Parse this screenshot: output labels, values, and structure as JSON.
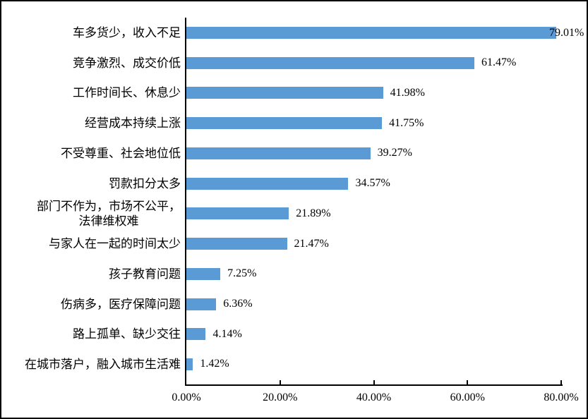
{
  "chart_data": {
    "type": "bar",
    "orientation": "horizontal",
    "title": "",
    "categories": [
      "车多货少，收入不足",
      "竞争激烈、成交价低",
      "工作时间长、休息少",
      "经营成本持续上涨",
      "不受尊重、社会地位低",
      "罚款扣分太多",
      "部门不作为，市场不公平，\n法律维权难",
      "与家人在一起的时间太少",
      "孩子教育问题",
      "伤病多，医疗保障问题",
      "路上孤单、缺少交往",
      "在城市落户，融入城市生活难"
    ],
    "values": [
      79.01,
      61.47,
      41.98,
      41.75,
      39.27,
      34.57,
      21.89,
      21.47,
      7.25,
      6.36,
      4.14,
      1.42
    ],
    "data_labels": [
      "79.01%",
      "61.47%",
      "41.98%",
      "41.75%",
      "39.27%",
      "34.57%",
      "21.89%",
      "21.47%",
      "7.25%",
      "6.36%",
      "4.14%",
      "1.42%"
    ],
    "xlim": [
      0,
      80
    ],
    "x_tick_values": [
      0,
      20,
      40,
      60,
      80
    ],
    "x_tick_labels": [
      "0.00%",
      "20.00%",
      "40.00%",
      "60.00%",
      "80.00%"
    ],
    "bar_color": "#5B9BD5",
    "axis_color": "#000000",
    "grid": false,
    "legend": false
  }
}
